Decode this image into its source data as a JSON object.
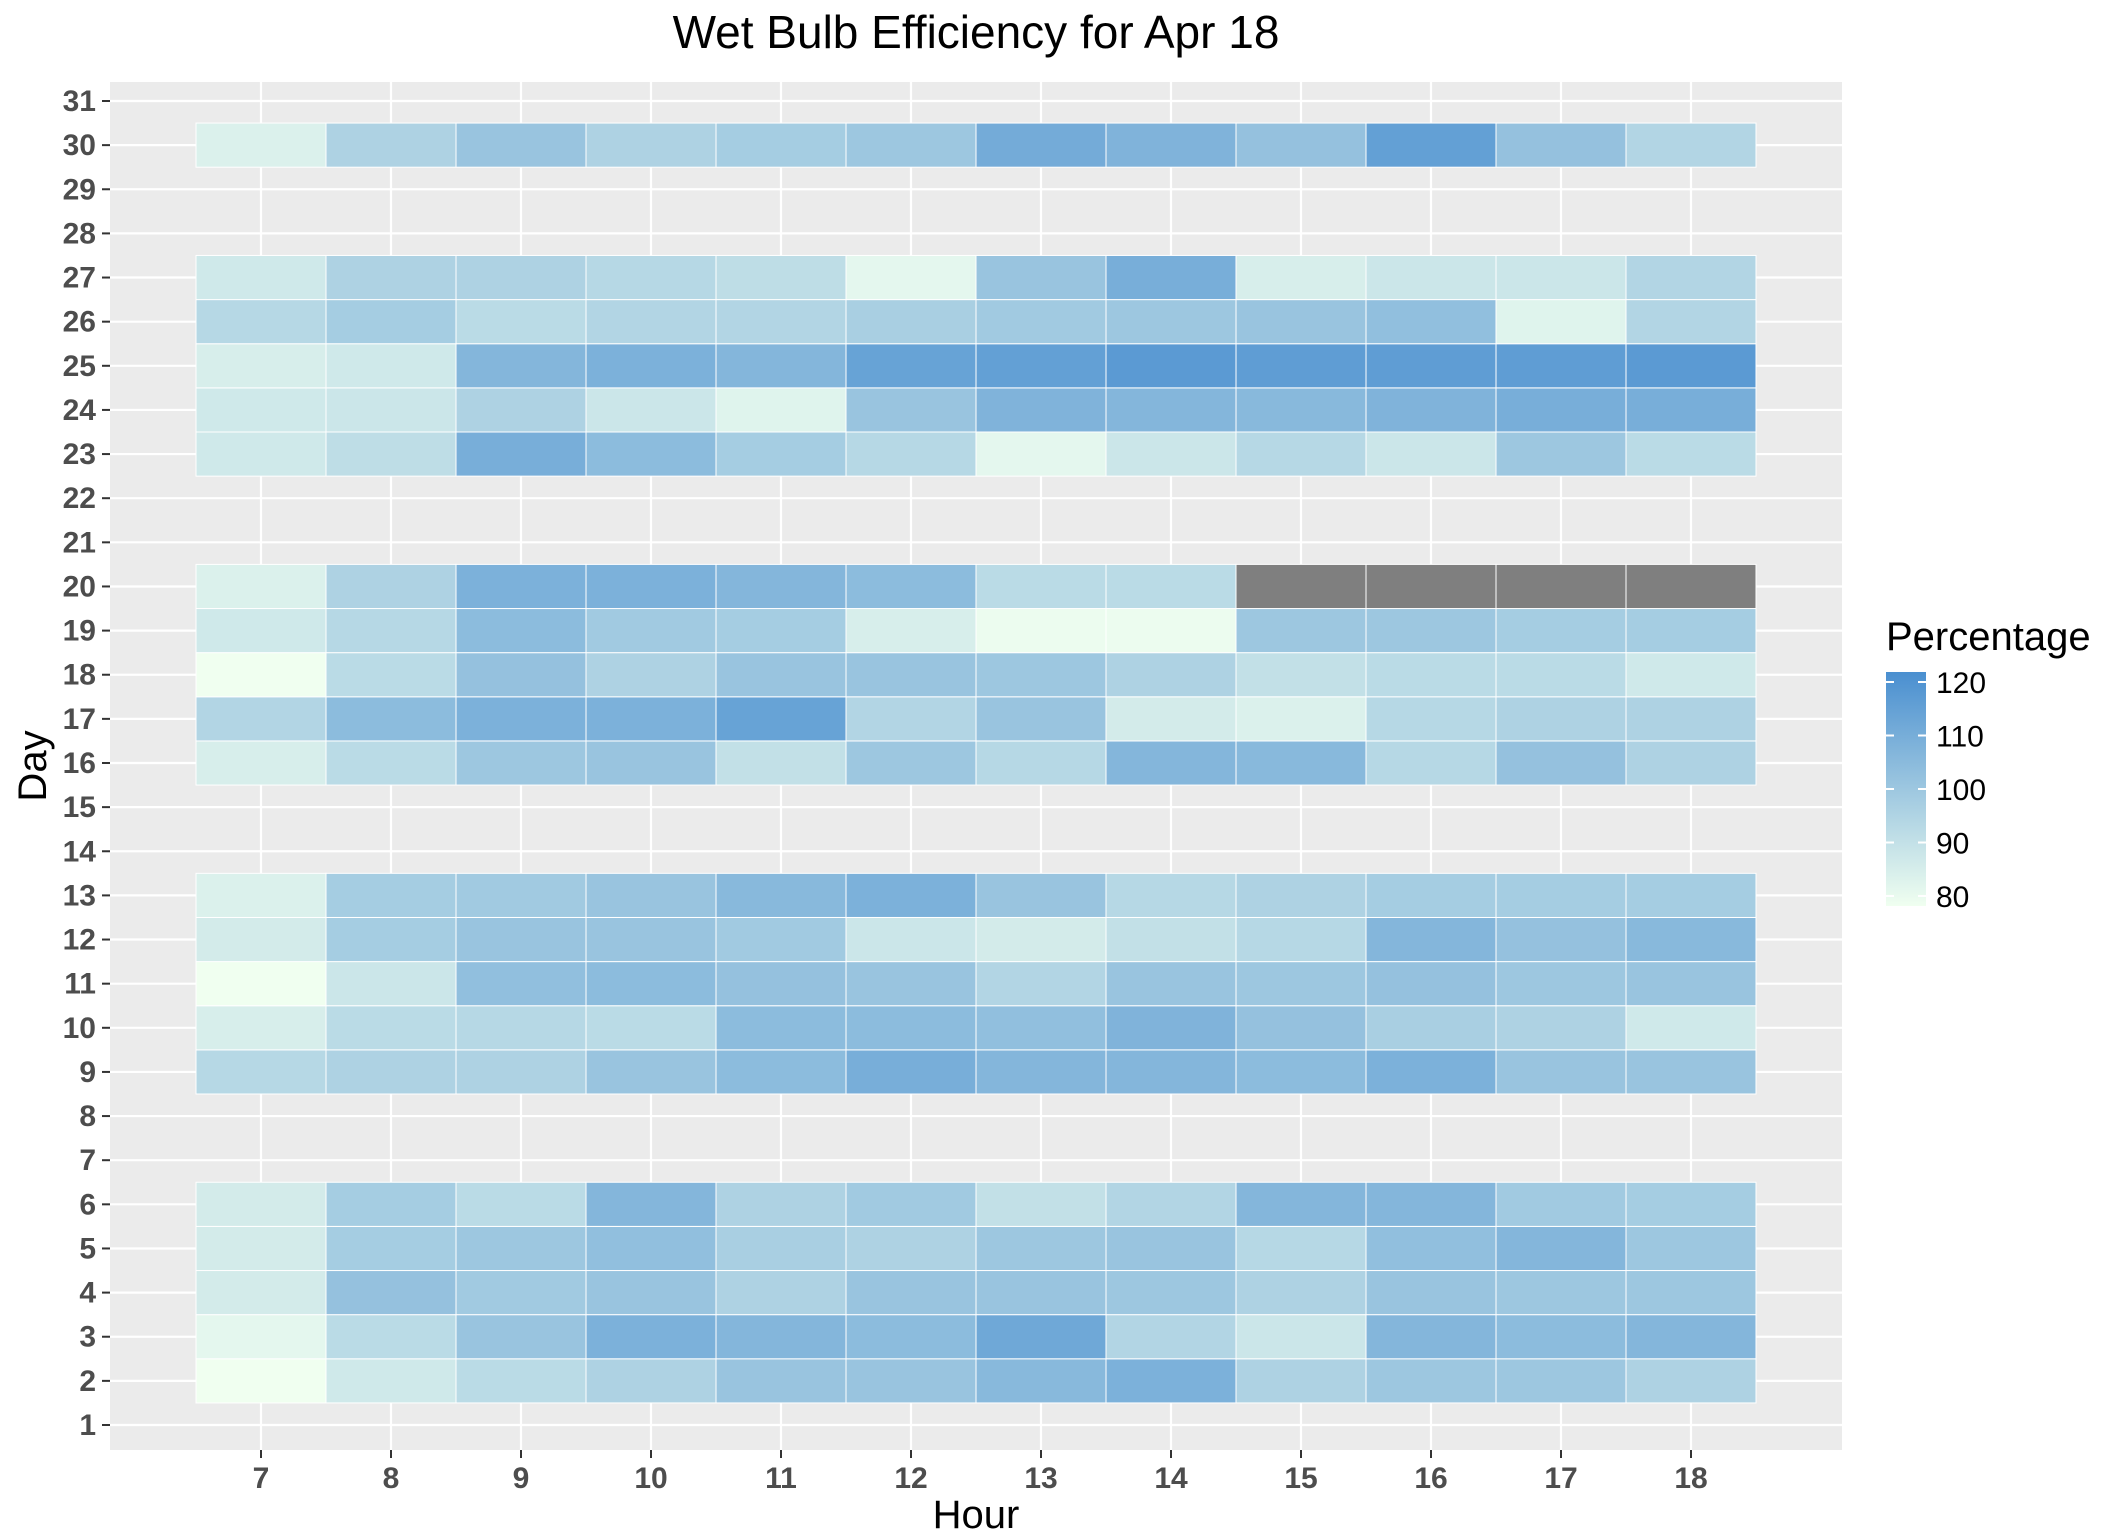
{
  "chart_data": {
    "type": "heatmap",
    "title": "Wet Bulb Efficiency for Apr 18",
    "xlabel": "Hour",
    "ylabel": "Day",
    "x": [
      7,
      8,
      9,
      10,
      11,
      12,
      13,
      14,
      15,
      16,
      17,
      18
    ],
    "y_ticks": [
      1,
      2,
      3,
      4,
      5,
      6,
      7,
      8,
      9,
      10,
      11,
      12,
      13,
      14,
      15,
      16,
      17,
      18,
      19,
      20,
      21,
      22,
      23,
      24,
      25,
      26,
      27,
      28,
      29,
      30,
      31
    ],
    "rows": [
      {
        "day": 2,
        "values": [
          80,
          88,
          93,
          96,
          101,
          101,
          105,
          108,
          96,
          100,
          100,
          96
        ]
      },
      {
        "day": 3,
        "values": [
          83,
          93,
          101,
          108,
          106,
          104,
          111,
          95,
          89,
          106,
          104,
          106
        ]
      },
      {
        "day": 4,
        "values": [
          87,
          102,
          99,
          101,
          96,
          101,
          101,
          100,
          96,
          101,
          100,
          100
        ]
      },
      {
        "day": 5,
        "values": [
          87,
          98,
          100,
          103,
          97,
          96,
          100,
          101,
          94,
          103,
          106,
          100
        ]
      },
      {
        "day": 6,
        "values": [
          87,
          98,
          93,
          106,
          96,
          99,
          91,
          95,
          106,
          106,
          99,
          98
        ]
      },
      {
        "day": 9,
        "values": [
          94,
          96,
          96,
          101,
          104,
          109,
          106,
          106,
          104,
          108,
          101,
          101
        ]
      },
      {
        "day": 10,
        "values": [
          86,
          93,
          94,
          93,
          104,
          104,
          103,
          107,
          102,
          97,
          96,
          88
        ]
      },
      {
        "day": 11,
        "values": [
          80,
          89,
          103,
          104,
          102,
          101,
          95,
          101,
          100,
          102,
          100,
          101
        ]
      },
      {
        "day": 12,
        "values": [
          87,
          98,
          101,
          101,
          99,
          89,
          87,
          91,
          94,
          106,
          102,
          105
        ]
      },
      {
        "day": 13,
        "values": [
          85,
          98,
          99,
          101,
          105,
          108,
          101,
          94,
          96,
          98,
          98,
          98
        ]
      },
      {
        "day": 16,
        "values": [
          86,
          93,
          100,
          101,
          91,
          100,
          94,
          106,
          105,
          94,
          102,
          96
        ]
      },
      {
        "day": 17,
        "values": [
          95,
          104,
          108,
          108,
          113,
          95,
          101,
          87,
          85,
          94,
          96,
          96
        ]
      },
      {
        "day": 18,
        "values": [
          80,
          93,
          102,
          96,
          101,
          101,
          100,
          96,
          91,
          93,
          93,
          88
        ]
      },
      {
        "day": 19,
        "values": [
          88,
          94,
          104,
          99,
          98,
          86,
          81,
          81,
          100,
          100,
          98,
          98
        ]
      },
      {
        "day": 20,
        "values": [
          85,
          96,
          108,
          108,
          106,
          104,
          93,
          93,
          null,
          null,
          null,
          null
        ]
      },
      {
        "day": 23,
        "values": [
          88,
          92,
          109,
          104,
          98,
          94,
          83,
          89,
          94,
          89,
          100,
          93
        ]
      },
      {
        "day": 24,
        "values": [
          88,
          89,
          96,
          89,
          84,
          101,
          107,
          106,
          105,
          107,
          109,
          109
        ]
      },
      {
        "day": 25,
        "values": [
          86,
          88,
          106,
          108,
          106,
          113,
          114,
          116,
          115,
          115,
          115,
          116
        ]
      },
      {
        "day": 26,
        "values": [
          94,
          98,
          93,
          95,
          95,
          97,
          99,
          100,
          101,
          103,
          84,
          95
        ]
      },
      {
        "day": 27,
        "values": [
          88,
          96,
          96,
          94,
          92,
          83,
          101,
          109,
          86,
          89,
          89,
          95
        ]
      },
      {
        "day": 30,
        "values": [
          85,
          96,
          101,
          96,
          98,
          100,
          110,
          107,
          102,
          114,
          102,
          95
        ]
      }
    ],
    "na_color": "#7f7f7f",
    "legend": {
      "title": "Percentage",
      "ticks": [
        120,
        110,
        100,
        90,
        80
      ],
      "min": 80,
      "max": 120,
      "low_color": "#f0fff0",
      "high_color": "#4a8fd0",
      "placement": "right"
    },
    "panel_background": "#ebebeb",
    "grid": true
  }
}
